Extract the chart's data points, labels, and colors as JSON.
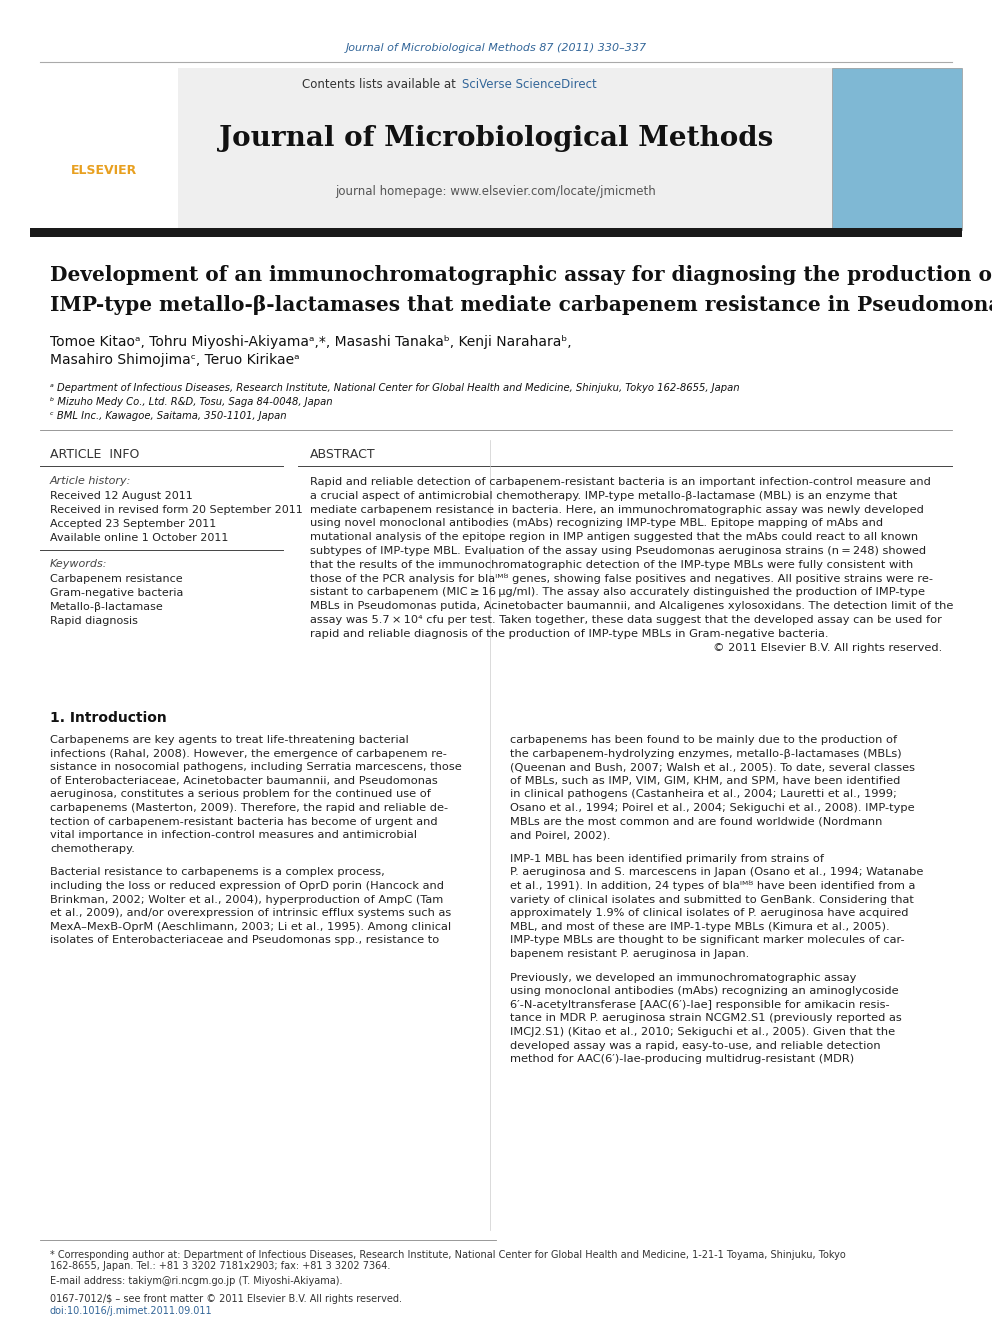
{
  "journal_ref": "Journal of Microbiological Methods 87 (2011) 330–337",
  "journal_ref_color": "#336699",
  "header_bg": "#efefef",
  "contents_text": "Contents lists available at ",
  "sciverse_text": "SciVerse ScienceDirect",
  "sciverse_color": "#336699",
  "journal_title": "Journal of Microbiological Methods",
  "homepage_text": "journal homepage: www.elsevier.com/locate/jmicmeth",
  "thick_bar_color": "#1a1a1a",
  "article_title_line1": "Development of an immunochromatographic assay for diagnosing the production of",
  "article_title_line2": "IMP-type metallo-β-lactamases that mediate carbapenem resistance in ",
  "article_title_italic": "Pseudomonas",
  "affil_a": "ᵃ Department of Infectious Diseases, Research Institute, National Center for Global Health and Medicine, Shinjuku, Tokyo 162-8655, Japan",
  "affil_b": "ᵇ Mizuho Medy Co., Ltd. R&D, Tosu, Saga 84-0048, Japan",
  "affil_c": "ᶜ BML Inc., Kawagoe, Saitama, 350-1101, Japan",
  "article_info_header": "ARTICLE  INFO",
  "abstract_header": "ABSTRACT",
  "keyword1": "Carbapenem resistance",
  "keyword2": "Gram-negative bacteria",
  "keyword3": "Metallo-β-lactamase",
  "keyword4": "Rapid diagnosis",
  "abstract_text_lines": [
    "Rapid and reliable detection of carbapenem-resistant bacteria is an important infection-control measure and",
    "a crucial aspect of antimicrobial chemotherapy. IMP-type metallo-β-lactamase (MBL) is an enzyme that",
    "mediate carbapenem resistance in bacteria. Here, an immunochromatographic assay was newly developed",
    "using novel monoclonal antibodies (mAbs) recognizing IMP-type MBL. Epitope mapping of mAbs and",
    "mutational analysis of the epitope region in IMP antigen suggested that the mAbs could react to all known",
    "subtypes of IMP-type MBL. Evaluation of the assay using Pseudomonas aeruginosa strains (n = 248) showed",
    "that the results of the immunochromatographic detection of the IMP-type MBLs were fully consistent with",
    "those of the PCR analysis for blaᴵᴹᴽ genes, showing false positives and negatives. All positive strains were re-",
    "sistant to carbapenem (MIC ≥ 16 μg/ml). The assay also accurately distinguished the production of IMP-type",
    "MBLs in Pseudomonas putida, Acinetobacter baumannii, and Alcaligenes xylosoxidans. The detection limit of the",
    "assay was 5.7 × 10⁴ cfu per test. Taken together, these data suggest that the developed assay can be used for",
    "rapid and reliable diagnosis of the production of IMP-type MBLs in Gram-negative bacteria.",
    "© 2011 Elsevier B.V. All rights reserved."
  ],
  "intro_col1_lines": [
    "Carbapenems are key agents to treat life-threatening bacterial",
    "infections (Rahal, 2008). However, the emergence of carbapenem re-",
    "sistance in nosocomial pathogens, including Serratia marcescens, those",
    "of Enterobacteriaceae, Acinetobacter baumannii, and Pseudomonas",
    "aeruginosa, constitutes a serious problem for the continued use of",
    "carbapenems (Masterton, 2009). Therefore, the rapid and reliable de-",
    "tection of carbapenem-resistant bacteria has become of urgent and",
    "vital importance in infection-control measures and antimicrobial",
    "chemotherapy."
  ],
  "intro_col1_p2_lines": [
    "Bacterial resistance to carbapenems is a complex process,",
    "including the loss or reduced expression of OprD porin (Hancock and",
    "Brinkman, 2002; Wolter et al., 2004), hyperproduction of AmpC (Tam",
    "et al., 2009), and/or overexpression of intrinsic efflux systems such as",
    "MexA–MexB-OprM (Aeschlimann, 2003; Li et al., 1995). Among clinical",
    "isolates of Enterobacteriaceae and Pseudomonas spp., resistance to"
  ],
  "intro_col2_p1_lines": [
    "carbapenems has been found to be mainly due to the production of",
    "the carbapenem-hydrolyzing enzymes, metallo-β-lactamases (MBLs)",
    "(Queenan and Bush, 2007; Walsh et al., 2005). To date, several classes",
    "of MBLs, such as IMP, VIM, GIM, KHM, and SPM, have been identified",
    "in clinical pathogens (Castanheira et al., 2004; Lauretti et al., 1999;",
    "Osano et al., 1994; Poirel et al., 2004; Sekiguchi et al., 2008). IMP-type",
    "MBLs are the most common and are found worldwide (Nordmann",
    "and Poirel, 2002)."
  ],
  "intro_col2_p2_lines": [
    "IMP-1 MBL has been identified primarily from strains of",
    "P. aeruginosa and S. marcescens in Japan (Osano et al., 1994; Watanabe",
    "et al., 1991). In addition, 24 types of blaᴵᴹᴽ have been identified from a",
    "variety of clinical isolates and submitted to GenBank. Considering that",
    "approximately 1.9% of clinical isolates of P. aeruginosa have acquired",
    "MBL, and most of these are IMP-1-type MBLs (Kimura et al., 2005).",
    "IMP-type MBLs are thought to be significant marker molecules of car-",
    "bapenem resistant P. aeruginosa in Japan."
  ],
  "intro_col2_p3_lines": [
    "Previously, we developed an immunochromatographic assay",
    "using monoclonal antibodies (mAbs) recognizing an aminoglycoside",
    "6′-N-acetyltransferase [AAC(6′)-Iae] responsible for amikacin resis-",
    "tance in MDR P. aeruginosa strain NCGM2.S1 (previously reported as",
    "IMCJ2.S1) (Kitao et al., 2010; Sekiguchi et al., 2005). Given that the",
    "developed assay was a rapid, easy-to-use, and reliable detection",
    "method for AAC(6′)-Iae-producing multidrug-resistant (MDR)"
  ],
  "footer_lines": [
    "* Corresponding author at: Department of Infectious Diseases, Research Institute, National Center for Global Health and Medicine, 1-21-1 Toyama, Shinjuku, Tokyo",
    "162-8655, Japan. Tel.: +81 3 3202 7181x2903; fax: +81 3 3202 7364."
  ],
  "footer_email": "E-mail address: takiym@ri.ncgm.go.jp (T. Miyoshi-Akiyama).",
  "footer_issn": "0167-7012/$ – see front matter © 2011 Elsevier B.V. All rights reserved.",
  "footer_doi": "doi:10.1016/j.mimet.2011.09.011",
  "text_color": "#000000",
  "link_color": "#336699",
  "bg_color": "#ffffff"
}
